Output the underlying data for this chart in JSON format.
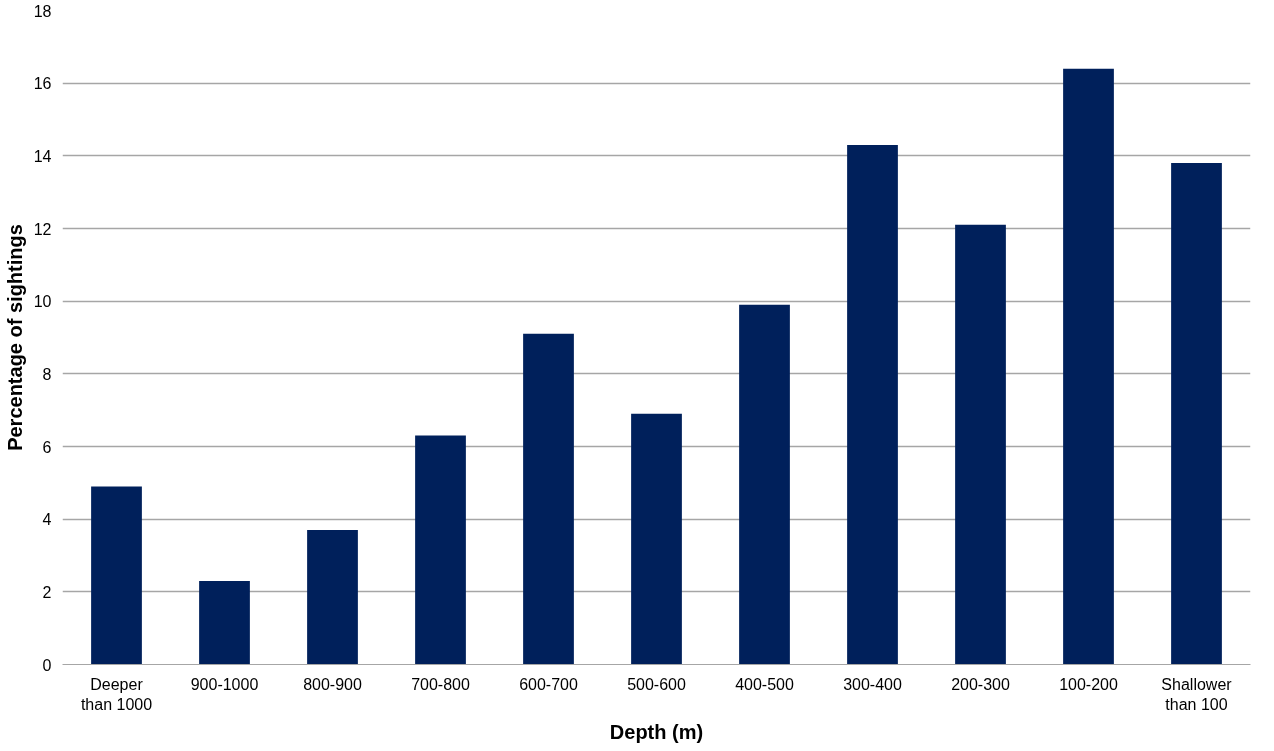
{
  "chart_data": {
    "type": "bar",
    "xlabel": "Depth (m)",
    "ylabel": "Percentage of sightings",
    "categories": [
      "Deeper\nthan 1000",
      "900-1000",
      "800-900",
      "700-800",
      "600-700",
      "500-600",
      "400-500",
      "300-400",
      "200-300",
      "100-200",
      "Shallower\nthan 100"
    ],
    "values": [
      4.9,
      2.3,
      3.7,
      6.3,
      9.1,
      6.9,
      9.9,
      14.3,
      12.1,
      16.4,
      13.8
    ],
    "color": "#00205b",
    "ylim": [
      0,
      18
    ],
    "yticks": [
      0,
      2,
      4,
      6,
      8,
      10,
      12,
      14,
      16,
      18
    ],
    "grid": "y"
  }
}
